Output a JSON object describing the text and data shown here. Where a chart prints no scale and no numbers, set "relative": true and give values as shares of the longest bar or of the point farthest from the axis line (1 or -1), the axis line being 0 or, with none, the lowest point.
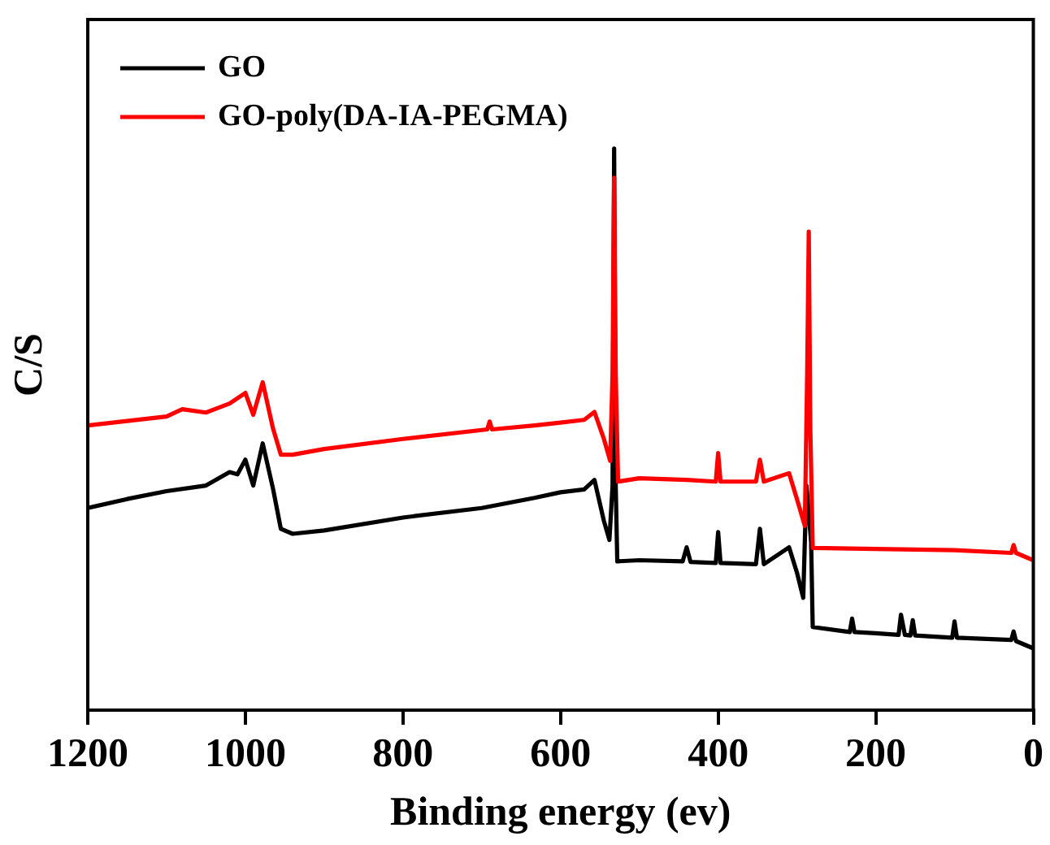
{
  "chart_data": {
    "type": "line",
    "relative": true,
    "xlabel": "Binding energy (ev)",
    "ylabel": "C/S",
    "xlim": [
      1200,
      0
    ],
    "xticks": [
      1200,
      1000,
      800,
      600,
      400,
      200,
      0
    ],
    "grid": false,
    "legend": "top left",
    "marker": "none",
    "line_style": "solid",
    "series": [
      {
        "name": "GO",
        "color": "#000000",
        "x": [
          1200,
          1150,
          1100,
          1050,
          1020,
          1010,
          1000,
          990,
          978,
          965,
          955,
          940,
          900,
          800,
          700,
          633,
          600,
          570,
          557,
          545,
          538,
          534,
          532,
          530,
          528,
          500,
          445,
          440,
          435,
          403,
          400,
          397,
          352,
          347,
          342,
          310,
          300,
          292,
          288,
          282,
          280,
          233,
          230,
          227,
          200,
          171,
          168,
          163,
          156,
          153,
          150,
          103,
          100,
          97,
          28,
          25,
          22,
          0
        ],
        "values": [
          0.36,
          0.376,
          0.39,
          0.4,
          0.424,
          0.42,
          0.446,
          0.4,
          0.475,
          0.395,
          0.323,
          0.314,
          0.32,
          0.343,
          0.36,
          0.378,
          0.388,
          0.393,
          0.41,
          0.337,
          0.303,
          0.4,
          1.0,
          0.4,
          0.265,
          0.267,
          0.265,
          0.29,
          0.264,
          0.262,
          0.317,
          0.262,
          0.26,
          0.323,
          0.26,
          0.29,
          0.245,
          0.2,
          0.4,
          0.3,
          0.148,
          0.139,
          0.163,
          0.139,
          0.137,
          0.134,
          0.17,
          0.134,
          0.133,
          0.16,
          0.133,
          0.129,
          0.158,
          0.129,
          0.125,
          0.14,
          0.123,
          0.11
        ]
      },
      {
        "name": "GO-poly(DA-IA-PEGMA)",
        "color": "#ff0000",
        "x": [
          1200,
          1150,
          1100,
          1080,
          1050,
          1020,
          1000,
          990,
          978,
          965,
          955,
          940,
          900,
          800,
          693,
          690,
          687,
          633,
          600,
          570,
          557,
          545,
          537,
          534,
          532,
          530,
          527,
          500,
          440,
          403,
          400,
          397,
          352,
          347,
          342,
          310,
          300,
          290,
          287,
          285,
          283,
          280,
          200,
          100,
          28,
          25,
          22,
          0
        ],
        "values": [
          0.507,
          0.515,
          0.523,
          0.536,
          0.53,
          0.546,
          0.565,
          0.526,
          0.584,
          0.502,
          0.455,
          0.455,
          0.465,
          0.483,
          0.5,
          0.514,
          0.5,
          0.507,
          0.512,
          0.517,
          0.531,
          0.483,
          0.444,
          0.6,
          0.948,
          0.6,
          0.407,
          0.413,
          0.41,
          0.407,
          0.458,
          0.407,
          0.407,
          0.446,
          0.407,
          0.422,
          0.376,
          0.328,
          0.6,
          0.852,
          0.5,
          0.289,
          0.287,
          0.285,
          0.28,
          0.294,
          0.28,
          0.267
        ]
      }
    ]
  }
}
